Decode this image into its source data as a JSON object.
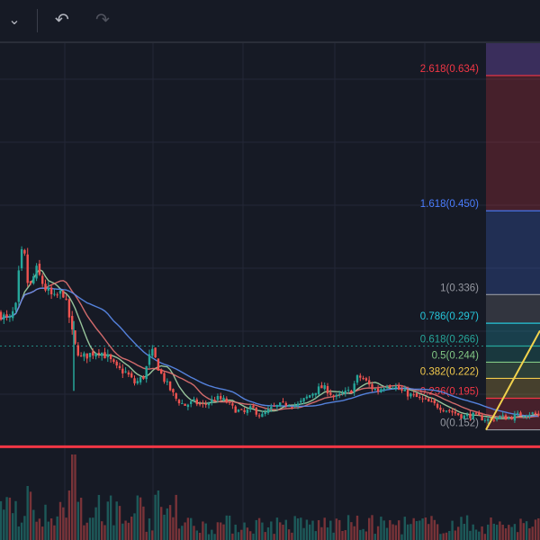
{
  "toolbar": {
    "dropdown_icon": "chevron-down-icon",
    "undo_icon": "undo-icon",
    "redo_icon": "redo-icon",
    "dropdown_glyph": "⌄",
    "undo_glyph": "↶",
    "redo_glyph": "↷"
  },
  "colors": {
    "background": "#161a25",
    "grid": "#242836",
    "up": "#26a69a",
    "down": "#ef5350",
    "ma_fast": "#a5d6a7",
    "ma_mid": "#e57373",
    "ma_slow": "#5b8def",
    "support_line": "#f23645",
    "trend_line": "#f2d34d"
  },
  "chart_data": {
    "type": "candlestick",
    "price_range": [
      0.127,
      0.678
    ],
    "grid": true,
    "support_price": 0.129,
    "fib_levels": [
      {
        "label": "2.618(0.634)",
        "value": 0.634,
        "color": "#f23645"
      },
      {
        "label": "1.618(0.450)",
        "value": 0.45,
        "color": "#4a7dff"
      },
      {
        "label": "1(0.336)",
        "value": 0.336,
        "color": "#9598a1"
      },
      {
        "label": "0.786(0.297)",
        "value": 0.297,
        "color": "#26c6da"
      },
      {
        "label": "0.618(0.266)",
        "value": 0.266,
        "color": "#26a69a"
      },
      {
        "label": "0.5(0.244)",
        "value": 0.244,
        "color": "#81c784"
      },
      {
        "label": "0.382(0.222)",
        "value": 0.222,
        "color": "#f2c94c"
      },
      {
        "label": "0.236(0.195)",
        "value": 0.195,
        "color": "#f23645"
      },
      {
        "label": "0(0.152)",
        "value": 0.152,
        "color": "#9598a1"
      }
    ],
    "price_path": [
      [
        0,
        0.31
      ],
      [
        10,
        0.3
      ],
      [
        18,
        0.32
      ],
      [
        22,
        0.38
      ],
      [
        26,
        0.4
      ],
      [
        32,
        0.34
      ],
      [
        40,
        0.37
      ],
      [
        50,
        0.345
      ],
      [
        60,
        0.33
      ],
      [
        70,
        0.34
      ],
      [
        78,
        0.3
      ],
      [
        82,
        0.27
      ],
      [
        90,
        0.25
      ],
      [
        100,
        0.255
      ],
      [
        110,
        0.26
      ],
      [
        120,
        0.25
      ],
      [
        130,
        0.235
      ],
      [
        140,
        0.23
      ],
      [
        150,
        0.215
      ],
      [
        160,
        0.225
      ],
      [
        168,
        0.26
      ],
      [
        172,
        0.25
      ],
      [
        178,
        0.23
      ],
      [
        185,
        0.215
      ],
      [
        195,
        0.195
      ],
      [
        205,
        0.185
      ],
      [
        215,
        0.19
      ],
      [
        225,
        0.185
      ],
      [
        240,
        0.195
      ],
      [
        250,
        0.192
      ],
      [
        260,
        0.18
      ],
      [
        272,
        0.175
      ],
      [
        280,
        0.182
      ],
      [
        290,
        0.17
      ],
      [
        300,
        0.18
      ],
      [
        310,
        0.185
      ],
      [
        320,
        0.188
      ],
      [
        330,
        0.185
      ],
      [
        340,
        0.195
      ],
      [
        350,
        0.205
      ],
      [
        358,
        0.21
      ],
      [
        365,
        0.205
      ],
      [
        372,
        0.195
      ],
      [
        380,
        0.2
      ],
      [
        390,
        0.205
      ],
      [
        398,
        0.225
      ],
      [
        405,
        0.22
      ],
      [
        412,
        0.21
      ],
      [
        420,
        0.205
      ],
      [
        430,
        0.215
      ],
      [
        438,
        0.212
      ],
      [
        445,
        0.205
      ],
      [
        455,
        0.2
      ],
      [
        465,
        0.195
      ],
      [
        475,
        0.19
      ],
      [
        485,
        0.185
      ],
      [
        495,
        0.18
      ],
      [
        505,
        0.175
      ],
      [
        515,
        0.17
      ],
      [
        525,
        0.172
      ],
      [
        535,
        0.168
      ],
      [
        545,
        0.165
      ],
      [
        555,
        0.17
      ],
      [
        565,
        0.168
      ],
      [
        575,
        0.172
      ],
      [
        590,
        0.175
      ],
      [
        600,
        0.17
      ]
    ],
    "volume_spikes": [
      {
        "x": 82,
        "h": 0.95
      },
      {
        "x": 78,
        "h": 0.55
      },
      {
        "x": 30,
        "h": 0.6
      },
      {
        "x": 175,
        "h": 0.55
      }
    ]
  }
}
